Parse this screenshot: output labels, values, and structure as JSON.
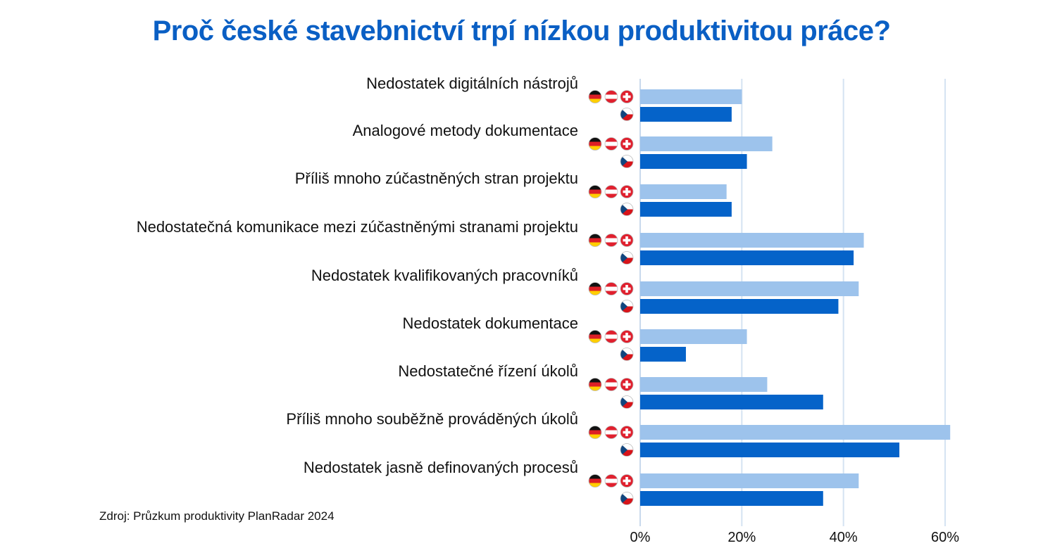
{
  "chart_data": {
    "type": "bar",
    "orientation": "horizontal",
    "title": "Proč české stavebnictví trpí nízkou produktivitou práce?",
    "categories": [
      "Nedostatek digitálních nástrojů",
      "Analogové metody dokumentace",
      "Příliš mnoho zúčastněných stran projektu",
      "Nedostatečná komunikace mezi zúčastněnými stranami projektu",
      "Nedostatek kvalifikovaných pracovníků",
      "Nedostatek dokumentace",
      "Nedostatečné řízení úkolů",
      "Příliš mnoho souběžně prováděných úkolů",
      "Nedostatek jasně definovaných procesů"
    ],
    "series": [
      {
        "flags": [
          "de-flag-icon",
          "at-flag-icon",
          "ch-flag-icon"
        ],
        "color": "#9dc3ec",
        "values": [
          20,
          26,
          17,
          44,
          43,
          21,
          25,
          61,
          43
        ]
      },
      {
        "flags": [
          "cz-flag-icon"
        ],
        "color": "#0563c9",
        "values": [
          18,
          21,
          18,
          42,
          39,
          9,
          36,
          51,
          36
        ]
      }
    ],
    "xlim": [
      0,
      60
    ],
    "ticks": [
      "0%",
      "20%",
      "40%",
      "60%"
    ],
    "grid": true,
    "gridColor": "#d5e3f2",
    "source": "Zdroj: Průzkum produktivity PlanRadar 2024"
  }
}
